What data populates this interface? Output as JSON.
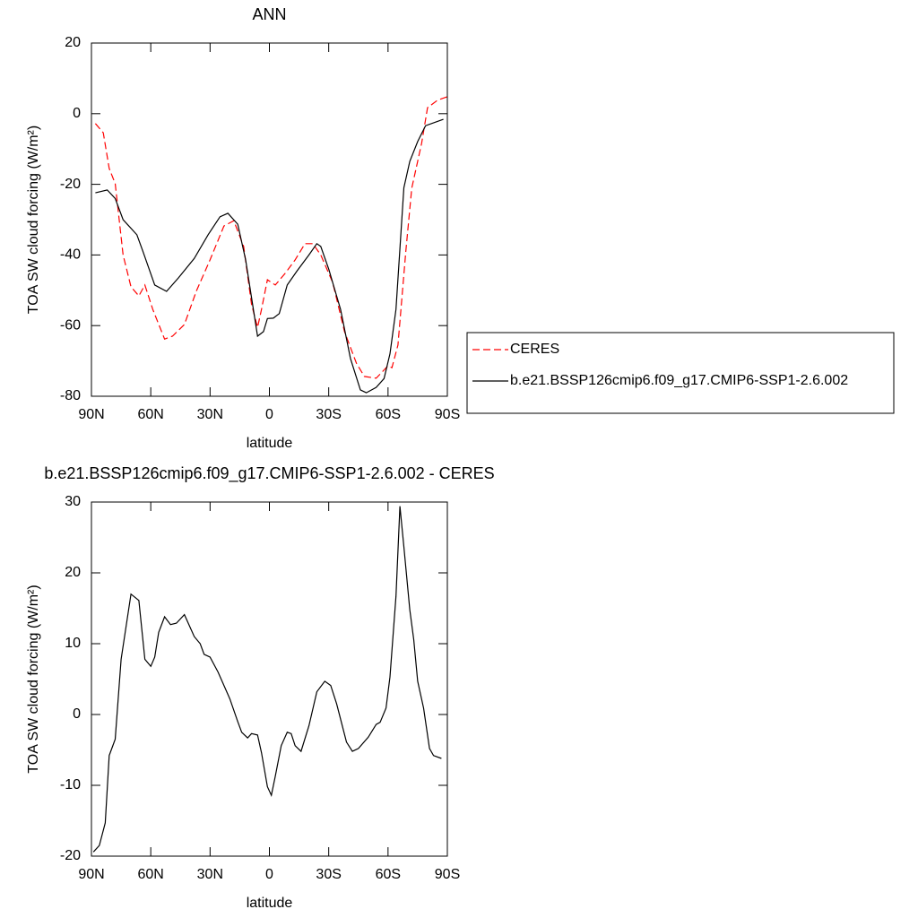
{
  "chart_data": [
    {
      "type": "line",
      "title": "ANN",
      "xlabel": "latitude",
      "ylabel": "TOA SW cloud forcing (W/m²)",
      "xlim": [
        90,
        -90
      ],
      "xticks": [
        {
          "value": 90,
          "label": "90N"
        },
        {
          "value": 60,
          "label": "60N"
        },
        {
          "value": 30,
          "label": "30N"
        },
        0,
        {
          "value": -30,
          "label": "30S"
        },
        {
          "value": -60,
          "label": "60S"
        },
        {
          "value": -90,
          "label": "90S"
        }
      ],
      "ylim": [
        -80,
        20
      ],
      "yticks": [
        -80,
        -60,
        -40,
        -20,
        0,
        20
      ],
      "legend": "right",
      "series": [
        {
          "name": "CERES",
          "color": "#ff0000",
          "dash": true,
          "x": [
            88,
            84,
            81,
            78,
            74,
            70,
            66,
            63,
            59,
            53,
            49,
            43,
            37,
            30,
            23,
            18,
            13,
            9,
            6,
            4,
            1,
            -1,
            -3,
            -8,
            -13,
            -18,
            -22,
            -26,
            -32,
            -38,
            -44,
            -48,
            -54,
            -60,
            -62,
            -65,
            -69,
            -72,
            -77,
            -80,
            -85,
            -90
          ],
          "values": [
            -2.8,
            -5.4,
            -15.5,
            -19.8,
            -40,
            -49,
            -51.6,
            -48.5,
            -55.4,
            -63.8,
            -63,
            -59.7,
            -50.3,
            -41.4,
            -31.8,
            -30.3,
            -37.6,
            -54,
            -60.5,
            -55.4,
            -47,
            -47.8,
            -48.5,
            -45.2,
            -41.4,
            -36.8,
            -36.8,
            -40,
            -47.8,
            -61.7,
            -70.6,
            -74.4,
            -74.9,
            -71.4,
            -71.9,
            -65.5,
            -38.9,
            -21.1,
            -8.4,
            1.7,
            3.8,
            4.8
          ]
        },
        {
          "name": "b.e21.BSSP126cmip6.f09_g17.CMIP6-SSP1-2.6.002",
          "color": "#000000",
          "dash": false,
          "x": [
            88,
            82,
            78,
            74,
            67,
            64,
            58,
            52,
            46,
            38,
            31,
            25,
            21,
            16,
            12,
            6,
            3,
            1,
            -2,
            -5,
            -9,
            -14,
            -20,
            -24,
            -26,
            -30,
            -36,
            -41,
            -46,
            -49,
            -54,
            -58,
            -61,
            -64,
            -68,
            -71,
            -75,
            -79,
            -88
          ],
          "values": [
            -22.4,
            -21.6,
            -24,
            -30,
            -34.3,
            -38.9,
            -48.5,
            -50.3,
            -46.5,
            -41,
            -34.3,
            -29.2,
            -28.2,
            -31.3,
            -41.4,
            -63,
            -61.7,
            -58,
            -57.9,
            -56.6,
            -48.5,
            -44.5,
            -40,
            -36.8,
            -37.6,
            -44,
            -55.4,
            -69.3,
            -78.2,
            -79,
            -77.5,
            -75,
            -68,
            -55.4,
            -21,
            -13.5,
            -7.9,
            -3.4,
            -1.6
          ]
        }
      ]
    },
    {
      "type": "line",
      "title": "b.e21.BSSP126cmip6.f09_g17.CMIP6-SSP1-2.6.002 - CERES",
      "xlabel": "latitude",
      "ylabel": "TOA SW cloud forcing (W/m²)",
      "xlim": [
        90,
        -90
      ],
      "xticks": [
        {
          "value": 90,
          "label": "90N"
        },
        {
          "value": 60,
          "label": "60N"
        },
        {
          "value": 30,
          "label": "30N"
        },
        0,
        {
          "value": -30,
          "label": "30S"
        },
        {
          "value": -60,
          "label": "60S"
        },
        {
          "value": -90,
          "label": "90S"
        }
      ],
      "ylim": [
        -20,
        30
      ],
      "yticks": [
        -20,
        -10,
        0,
        10,
        20,
        30
      ],
      "series": [
        {
          "color": "#000000",
          "dash": false,
          "x": [
            89,
            86,
            83,
            81,
            78,
            75,
            70,
            66,
            63,
            60,
            58,
            56,
            53,
            50,
            47,
            43,
            38,
            35,
            33,
            30,
            26,
            23,
            20,
            16,
            14,
            11,
            9,
            6,
            4,
            1,
            -1,
            -3,
            -6,
            -9,
            -11,
            -13,
            -16,
            -20,
            -24,
            -28,
            -31,
            -34,
            -39,
            -42,
            -45,
            -50,
            -54,
            -56,
            -59,
            -61,
            -64,
            -66,
            -68,
            -71,
            -73,
            -75,
            -78,
            -81,
            -83,
            -87
          ],
          "values": [
            -19.4,
            -18.5,
            -15.3,
            -5.8,
            -3.5,
            7.8,
            17,
            16.1,
            7.8,
            6.8,
            8.1,
            11.6,
            13.8,
            12.7,
            12.9,
            14.1,
            11,
            10,
            8.5,
            8.1,
            6,
            4.1,
            2.2,
            -1,
            -2.5,
            -3.3,
            -2.7,
            -2.9,
            -5.4,
            -10.2,
            -11.4,
            -8.7,
            -4.4,
            -2.5,
            -2.7,
            -4.4,
            -5.2,
            -1.6,
            3.2,
            4.7,
            4.1,
            1.5,
            -3.9,
            -5.2,
            -4.8,
            -3.2,
            -1.4,
            -1.1,
            0.9,
            5.3,
            16.7,
            29.4,
            23.7,
            14.8,
            10.6,
            4.7,
            0.9,
            -4.8,
            -5.8,
            -6.2
          ]
        }
      ]
    }
  ]
}
